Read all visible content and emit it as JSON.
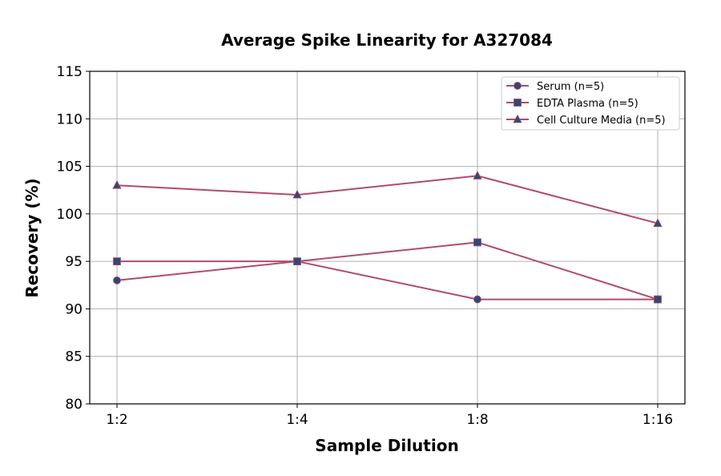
{
  "chart_data": {
    "type": "line",
    "title": "Average Spike Linearity for A327084",
    "xlabel": "Sample Dilution",
    "ylabel": "Recovery (%)",
    "categories": [
      "1:2",
      "1:4",
      "1:8",
      "1:16"
    ],
    "ylim": [
      80,
      115
    ],
    "yticks": [
      80,
      85,
      90,
      95,
      100,
      105,
      110,
      115
    ],
    "grid": true,
    "legend_position": "top-right",
    "line_color": "#b04a70",
    "marker_color": "#2e4a72",
    "series": [
      {
        "name": "Serum (n=5)",
        "marker": "circle",
        "values": [
          93,
          95,
          91,
          91
        ]
      },
      {
        "name": "EDTA Plasma (n=5)",
        "marker": "square",
        "values": [
          95,
          95,
          97,
          91
        ]
      },
      {
        "name": "Cell Culture Media (n=5)",
        "marker": "triangle",
        "values": [
          103,
          102,
          104,
          99
        ]
      }
    ]
  }
}
